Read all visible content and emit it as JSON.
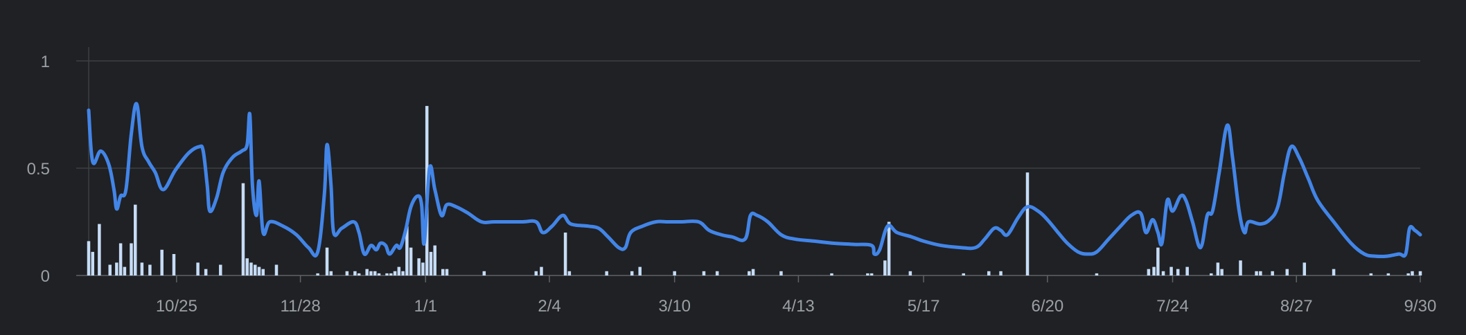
{
  "chart_data": {
    "type": "bar+line",
    "x_range": [
      0,
      100
    ],
    "ylim": [
      0,
      1
    ],
    "y_ticks": [
      {
        "value": 0,
        "label": "0"
      },
      {
        "value": 0.5,
        "label": "0.5"
      },
      {
        "value": 1,
        "label": "1"
      }
    ],
    "x_ticks": [
      {
        "x": 6.6,
        "label": "10/25"
      },
      {
        "x": 15.9,
        "label": "11/28"
      },
      {
        "x": 25.3,
        "label": "1/1"
      },
      {
        "x": 34.6,
        "label": "2/4"
      },
      {
        "x": 44.0,
        "label": "3/10"
      },
      {
        "x": 53.3,
        "label": "4/13"
      },
      {
        "x": 62.7,
        "label": "5/17"
      },
      {
        "x": 72.0,
        "label": "6/20"
      },
      {
        "x": 81.4,
        "label": "7/24"
      },
      {
        "x": 90.7,
        "label": "8/27"
      },
      {
        "x": 100.0,
        "label": "9/30"
      }
    ],
    "grid": true,
    "colors": {
      "bars": "#c6dcf6",
      "line": "#4285e8",
      "grid": "#3c4043",
      "text": "#9aa0a6",
      "background": "#202124"
    },
    "bars": [
      [
        0.0,
        0.16
      ],
      [
        0.3,
        0.11
      ],
      [
        0.8,
        0.24
      ],
      [
        1.6,
        0.05
      ],
      [
        2.1,
        0.06
      ],
      [
        2.4,
        0.15
      ],
      [
        2.7,
        0.04
      ],
      [
        3.2,
        0.15
      ],
      [
        3.5,
        0.33
      ],
      [
        4.0,
        0.06
      ],
      [
        4.6,
        0.05
      ],
      [
        5.5,
        0.12
      ],
      [
        6.4,
        0.1
      ],
      [
        8.2,
        0.06
      ],
      [
        8.8,
        0.03
      ],
      [
        9.9,
        0.05
      ],
      [
        11.6,
        0.43
      ],
      [
        11.9,
        0.08
      ],
      [
        12.2,
        0.06
      ],
      [
        12.5,
        0.05
      ],
      [
        12.8,
        0.04
      ],
      [
        13.1,
        0.03
      ],
      [
        14.1,
        0.05
      ],
      [
        17.2,
        0.01
      ],
      [
        17.9,
        0.13
      ],
      [
        18.2,
        0.02
      ],
      [
        19.4,
        0.02
      ],
      [
        20.0,
        0.02
      ],
      [
        20.3,
        0.01
      ],
      [
        20.9,
        0.03
      ],
      [
        21.2,
        0.02
      ],
      [
        21.5,
        0.02
      ],
      [
        21.8,
        0.01
      ],
      [
        22.4,
        0.01
      ],
      [
        22.7,
        0.01
      ],
      [
        23.0,
        0.02
      ],
      [
        23.3,
        0.04
      ],
      [
        23.6,
        0.02
      ],
      [
        23.9,
        0.23
      ],
      [
        24.2,
        0.13
      ],
      [
        24.8,
        0.08
      ],
      [
        25.1,
        0.06
      ],
      [
        25.4,
        0.79
      ],
      [
        25.7,
        0.11
      ],
      [
        26.0,
        0.14
      ],
      [
        26.6,
        0.03
      ],
      [
        26.9,
        0.03
      ],
      [
        29.7,
        0.02
      ],
      [
        33.6,
        0.02
      ],
      [
        34.0,
        0.04
      ],
      [
        35.8,
        0.2
      ],
      [
        36.1,
        0.02
      ],
      [
        38.9,
        0.02
      ],
      [
        40.8,
        0.02
      ],
      [
        41.4,
        0.04
      ],
      [
        44.0,
        0.02
      ],
      [
        46.2,
        0.02
      ],
      [
        47.2,
        0.02
      ],
      [
        49.6,
        0.02
      ],
      [
        49.9,
        0.03
      ],
      [
        52.0,
        0.02
      ],
      [
        55.8,
        0.01
      ],
      [
        58.5,
        0.01
      ],
      [
        58.8,
        0.01
      ],
      [
        59.8,
        0.07
      ],
      [
        60.1,
        0.25
      ],
      [
        61.7,
        0.02
      ],
      [
        65.7,
        0.01
      ],
      [
        67.6,
        0.02
      ],
      [
        68.5,
        0.02
      ],
      [
        70.5,
        0.48
      ],
      [
        75.7,
        0.01
      ],
      [
        79.6,
        0.03
      ],
      [
        80.0,
        0.04
      ],
      [
        80.3,
        0.13
      ],
      [
        80.7,
        0.02
      ],
      [
        81.3,
        0.04
      ],
      [
        81.8,
        0.03
      ],
      [
        82.5,
        0.04
      ],
      [
        84.3,
        0.01
      ],
      [
        84.8,
        0.06
      ],
      [
        85.1,
        0.03
      ],
      [
        86.5,
        0.07
      ],
      [
        87.7,
        0.02
      ],
      [
        88.0,
        0.02
      ],
      [
        88.9,
        0.02
      ],
      [
        90.0,
        0.03
      ],
      [
        91.3,
        0.06
      ],
      [
        93.5,
        0.03
      ],
      [
        96.3,
        0.01
      ],
      [
        97.6,
        0.01
      ],
      [
        99.1,
        0.01
      ],
      [
        99.4,
        0.02
      ],
      [
        100.0,
        0.02
      ]
    ],
    "line": [
      [
        0.0,
        0.77
      ],
      [
        0.3,
        0.53
      ],
      [
        0.9,
        0.58
      ],
      [
        1.5,
        0.52
      ],
      [
        1.9,
        0.4
      ],
      [
        2.1,
        0.31
      ],
      [
        2.4,
        0.37
      ],
      [
        2.8,
        0.4
      ],
      [
        3.2,
        0.66
      ],
      [
        3.6,
        0.8
      ],
      [
        4.0,
        0.6
      ],
      [
        4.5,
        0.53
      ],
      [
        5.0,
        0.48
      ],
      [
        5.6,
        0.4
      ],
      [
        6.5,
        0.49
      ],
      [
        7.5,
        0.57
      ],
      [
        8.3,
        0.6
      ],
      [
        8.6,
        0.58
      ],
      [
        8.9,
        0.42
      ],
      [
        9.1,
        0.3
      ],
      [
        9.6,
        0.36
      ],
      [
        10.1,
        0.48
      ],
      [
        10.8,
        0.55
      ],
      [
        11.5,
        0.58
      ],
      [
        11.9,
        0.61
      ],
      [
        12.1,
        0.75
      ],
      [
        12.3,
        0.42
      ],
      [
        12.6,
        0.28
      ],
      [
        12.8,
        0.44
      ],
      [
        13.1,
        0.2
      ],
      [
        13.6,
        0.25
      ],
      [
        14.6,
        0.23
      ],
      [
        15.6,
        0.19
      ],
      [
        16.5,
        0.13
      ],
      [
        17.2,
        0.11
      ],
      [
        17.7,
        0.38
      ],
      [
        17.9,
        0.61
      ],
      [
        18.2,
        0.42
      ],
      [
        18.4,
        0.2
      ],
      [
        19.0,
        0.22
      ],
      [
        19.9,
        0.25
      ],
      [
        20.3,
        0.2
      ],
      [
        20.7,
        0.1
      ],
      [
        21.2,
        0.14
      ],
      [
        21.6,
        0.12
      ],
      [
        21.9,
        0.15
      ],
      [
        22.3,
        0.14
      ],
      [
        22.6,
        0.1
      ],
      [
        23.1,
        0.14
      ],
      [
        23.4,
        0.13
      ],
      [
        23.8,
        0.21
      ],
      [
        24.2,
        0.32
      ],
      [
        24.7,
        0.37
      ],
      [
        25.0,
        0.33
      ],
      [
        25.2,
        0.15
      ],
      [
        25.6,
        0.5
      ],
      [
        26.0,
        0.4
      ],
      [
        26.5,
        0.28
      ],
      [
        26.9,
        0.33
      ],
      [
        27.6,
        0.32
      ],
      [
        28.5,
        0.29
      ],
      [
        29.5,
        0.25
      ],
      [
        30.5,
        0.25
      ],
      [
        32.5,
        0.25
      ],
      [
        33.6,
        0.25
      ],
      [
        34.1,
        0.2
      ],
      [
        34.8,
        0.23
      ],
      [
        35.6,
        0.28
      ],
      [
        36.2,
        0.24
      ],
      [
        37.5,
        0.23
      ],
      [
        38.3,
        0.22
      ],
      [
        39.0,
        0.18
      ],
      [
        39.8,
        0.13
      ],
      [
        40.3,
        0.13
      ],
      [
        40.7,
        0.2
      ],
      [
        41.6,
        0.23
      ],
      [
        42.6,
        0.25
      ],
      [
        43.5,
        0.25
      ],
      [
        44.5,
        0.25
      ],
      [
        45.8,
        0.25
      ],
      [
        46.6,
        0.21
      ],
      [
        47.5,
        0.19
      ],
      [
        48.3,
        0.18
      ],
      [
        49.3,
        0.17
      ],
      [
        49.7,
        0.28
      ],
      [
        50.2,
        0.28
      ],
      [
        51.0,
        0.25
      ],
      [
        52.0,
        0.19
      ],
      [
        53.0,
        0.17
      ],
      [
        54.5,
        0.16
      ],
      [
        56.0,
        0.15
      ],
      [
        57.5,
        0.145
      ],
      [
        58.8,
        0.14
      ],
      [
        59.0,
        0.1
      ],
      [
        59.4,
        0.12
      ],
      [
        60.0,
        0.23
      ],
      [
        60.7,
        0.2
      ],
      [
        61.8,
        0.18
      ],
      [
        62.7,
        0.16
      ],
      [
        64.0,
        0.14
      ],
      [
        65.5,
        0.13
      ],
      [
        66.6,
        0.13
      ],
      [
        67.3,
        0.17
      ],
      [
        68.0,
        0.22
      ],
      [
        68.5,
        0.21
      ],
      [
        69.0,
        0.19
      ],
      [
        69.8,
        0.27
      ],
      [
        70.5,
        0.32
      ],
      [
        71.3,
        0.3
      ],
      [
        72.0,
        0.26
      ],
      [
        72.8,
        0.2
      ],
      [
        73.5,
        0.15
      ],
      [
        74.3,
        0.11
      ],
      [
        75.0,
        0.1
      ],
      [
        75.7,
        0.11
      ],
      [
        76.6,
        0.17
      ],
      [
        77.5,
        0.23
      ],
      [
        78.3,
        0.28
      ],
      [
        79.0,
        0.29
      ],
      [
        79.4,
        0.2
      ],
      [
        79.9,
        0.26
      ],
      [
        80.3,
        0.2
      ],
      [
        80.6,
        0.15
      ],
      [
        81.0,
        0.35
      ],
      [
        81.4,
        0.3
      ],
      [
        82.0,
        0.37
      ],
      [
        82.4,
        0.35
      ],
      [
        82.9,
        0.25
      ],
      [
        83.5,
        0.13
      ],
      [
        84.0,
        0.28
      ],
      [
        84.4,
        0.3
      ],
      [
        84.9,
        0.48
      ],
      [
        85.5,
        0.7
      ],
      [
        85.9,
        0.55
      ],
      [
        86.4,
        0.3
      ],
      [
        86.8,
        0.2
      ],
      [
        87.1,
        0.25
      ],
      [
        88.0,
        0.24
      ],
      [
        88.7,
        0.26
      ],
      [
        89.3,
        0.32
      ],
      [
        89.8,
        0.48
      ],
      [
        90.3,
        0.6
      ],
      [
        90.9,
        0.55
      ],
      [
        91.6,
        0.45
      ],
      [
        92.3,
        0.35
      ],
      [
        93.5,
        0.25
      ],
      [
        94.8,
        0.15
      ],
      [
        95.8,
        0.1
      ],
      [
        96.6,
        0.09
      ],
      [
        97.5,
        0.09
      ],
      [
        98.4,
        0.1
      ],
      [
        98.9,
        0.1
      ],
      [
        99.2,
        0.22
      ],
      [
        99.6,
        0.21
      ],
      [
        100.0,
        0.19
      ]
    ]
  }
}
